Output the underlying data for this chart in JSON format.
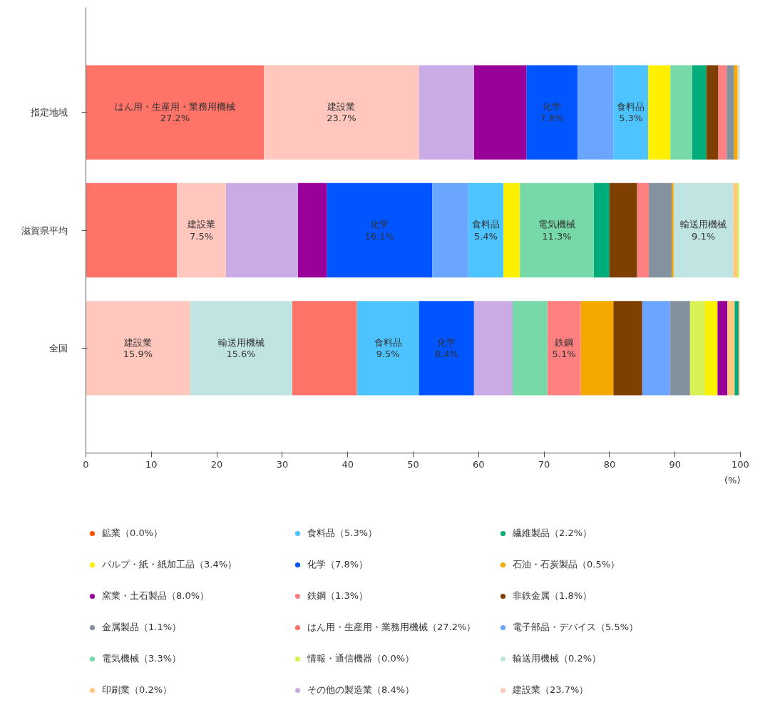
{
  "chart_data": {
    "type": "bar",
    "orientation": "horizontal",
    "xlabel": "(%)",
    "categories": [
      "指定地域",
      "滋賀県平均",
      "全国"
    ],
    "xlim": [
      0,
      100
    ],
    "xticks": [
      0,
      10,
      20,
      30,
      40,
      50,
      60,
      70,
      80,
      90,
      100
    ],
    "grid": false,
    "legend": "bottom",
    "series": [
      {
        "name": "鉱業（0.0%）",
        "color": "#ff4f00",
        "values": [
          0,
          0,
          0.1
        ],
        "base": [
          null,
          null,
          99.7
        ]
      },
      {
        "name": "食料品（5.3%）",
        "color": "#4dc3ff",
        "values": [
          5.3,
          5.4,
          9.5
        ],
        "base": [
          80.6,
          58.4,
          41.4
        ],
        "value_labels": [
          "食料品\n5.3%",
          "食料品\n5.4%",
          "食料品\n9.5%"
        ]
      },
      {
        "name": "繊維製品（2.2%）",
        "color": "#00ad7a",
        "values": [
          2.2,
          2.4,
          0.6
        ],
        "base": [
          92.6,
          77.6,
          99.1
        ]
      },
      {
        "name": "パルプ・紙・紙加工品（3.4%）",
        "color": "#fff000",
        "values": [
          3.4,
          2.5,
          1.9
        ],
        "base": [
          85.9,
          63.8,
          94.6
        ]
      },
      {
        "name": "化学（7.8%）",
        "color": "#0055ff",
        "values": [
          7.8,
          16.1,
          8.4
        ],
        "base": [
          67.3,
          36.8,
          50.9
        ],
        "value_labels": [
          "化学\n7.8%",
          "化学\n16.1%",
          "化学\n8.4%"
        ]
      },
      {
        "name": "石油・石炭製品（0.5%）",
        "color": "#f5a800",
        "values": [
          0.5,
          0.3,
          5.0
        ],
        "base": [
          99.0,
          89.5,
          75.6
        ]
      },
      {
        "name": "窯業・土石製品（8.0%）",
        "color": "#990099",
        "values": [
          8.0,
          4.4,
          1.5
        ],
        "base": [
          59.3,
          32.4,
          96.5
        ]
      },
      {
        "name": "鉄鋼（1.3%）",
        "color": "#ff8080",
        "values": [
          1.3,
          1.8,
          5.1
        ],
        "base": [
          96.6,
          84.2,
          70.5
        ],
        "value_labels": [
          null,
          null,
          "鉄鋼\n5.1%"
        ]
      },
      {
        "name": "非鉄金属（1.8%）",
        "color": "#7f3f00",
        "values": [
          1.8,
          4.2,
          4.4
        ],
        "base": [
          94.8,
          80.0,
          80.6
        ]
      },
      {
        "name": "金属製品（1.1%）",
        "color": "#84919e",
        "values": [
          1.1,
          3.5,
          3.1
        ],
        "base": [
          97.9,
          86.0,
          89.2
        ]
      },
      {
        "name": "はん用・生産用・業務用機械（27.2%）",
        "color": "#ff7369",
        "values": [
          27.2,
          13.9,
          9.9
        ],
        "base": [
          0,
          0,
          31.5
        ],
        "value_labels": [
          "はん用・生産用・業務用機械\n27.2%",
          null,
          null
        ]
      },
      {
        "name": "電子部品・デバイス（5.5%）",
        "color": "#6aa6ff",
        "values": [
          5.5,
          5.5,
          4.2
        ],
        "base": [
          75.1,
          52.9,
          85.0
        ]
      },
      {
        "name": "電気機械（3.3%）",
        "color": "#77d9a8",
        "values": [
          3.3,
          11.3,
          5.3
        ],
        "base": [
          89.3,
          66.3,
          65.2
        ],
        "value_labels": [
          null,
          "電気機械\n11.3%",
          null
        ]
      },
      {
        "name": "情報・通信機器（0.0%）",
        "color": "#d8f255",
        "values": [
          0,
          0.3,
          2.3
        ],
        "base": [
          null,
          99.5,
          92.3
        ]
      },
      {
        "name": "輸送用機械（0.2%）",
        "color": "#c0e4e2",
        "values": [
          0.2,
          9.1,
          15.6
        ],
        "base": [
          99.7,
          89.8,
          15.9
        ],
        "value_labels": [
          null,
          "輸送用機械\n9.1%",
          "輸送用機械\n15.6%"
        ]
      },
      {
        "name": "印刷業（0.2%）",
        "color": "#ffc77f",
        "values": [
          0.2,
          0.6,
          1.1
        ],
        "base": [
          99.5,
          98.9,
          98.0
        ]
      },
      {
        "name": "その他の製造業（8.4%）",
        "color": "#c9ace6",
        "values": [
          8.4,
          11.0,
          5.9
        ],
        "base": [
          50.9,
          21.4,
          59.3
        ]
      },
      {
        "name": "建設業（23.7%）",
        "color": "#ffc7bd",
        "values": [
          23.7,
          7.5,
          15.9
        ],
        "base": [
          27.2,
          13.9,
          0
        ],
        "value_labels": [
          "建設業\n23.7%",
          "建設業\n7.5%",
          "建設業\n15.9%"
        ]
      }
    ]
  }
}
